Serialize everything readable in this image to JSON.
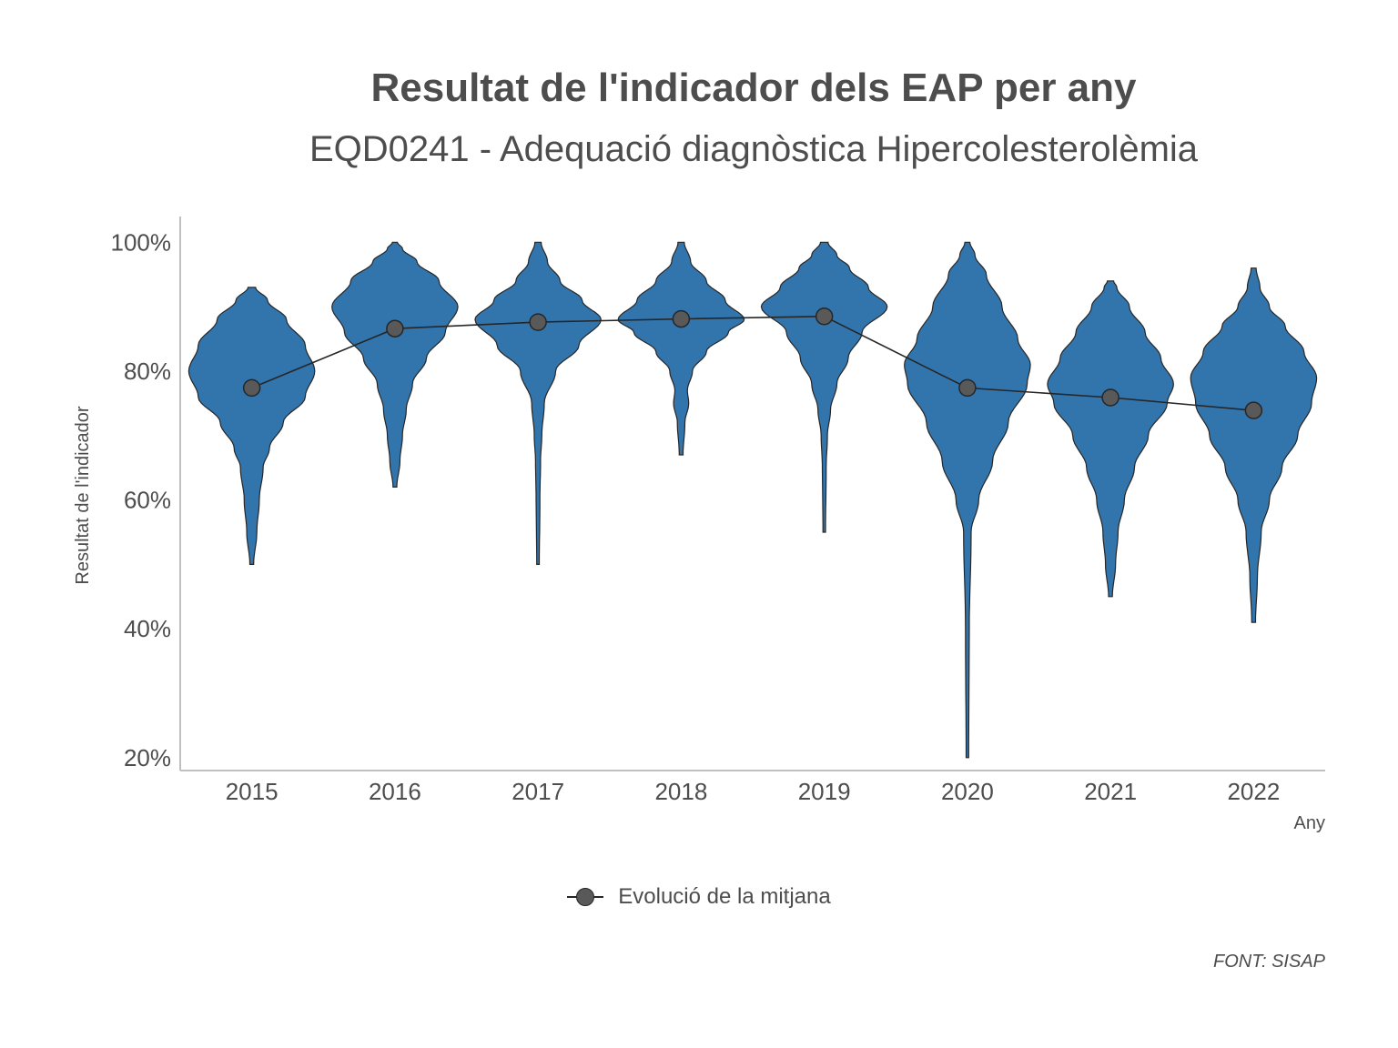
{
  "title": "Resultat de l'indicador dels EAP per any",
  "subtitle": "EQD0241 - Adequació diagnòstica Hipercolesterolèmia",
  "caption": "FONT: SISAP",
  "legend": {
    "label": "Evolució de la mitjana"
  },
  "colors": {
    "violin_fill": "#3275ad",
    "outline": "#262626",
    "mean_point": "#595959",
    "axis_line": "#bfbfbf",
    "text": "#4d4d4d"
  },
  "chart_data": {
    "type": "violin",
    "xlabel": "Any",
    "ylabel": "Resultat de l'indicador",
    "ylim": [
      0.18,
      1.04
    ],
    "yticks": [
      0.2,
      0.4,
      0.6,
      0.8,
      1.0
    ],
    "ytick_labels": [
      "20%",
      "40%",
      "60%",
      "80%",
      "100%"
    ],
    "grid": false,
    "legend_position": "bottom",
    "categories": [
      "2015",
      "2016",
      "2017",
      "2018",
      "2019",
      "2020",
      "2021",
      "2022"
    ],
    "violins": [
      {
        "year": "2015",
        "min": 0.5,
        "max": 0.93,
        "profile": [
          [
            0.5,
            0.03
          ],
          [
            0.55,
            0.08
          ],
          [
            0.6,
            0.12
          ],
          [
            0.65,
            0.18
          ],
          [
            0.68,
            0.28
          ],
          [
            0.72,
            0.5
          ],
          [
            0.76,
            0.85
          ],
          [
            0.8,
            1.0
          ],
          [
            0.84,
            0.85
          ],
          [
            0.88,
            0.55
          ],
          [
            0.91,
            0.25
          ],
          [
            0.93,
            0.06
          ]
        ]
      },
      {
        "year": "2016",
        "min": 0.62,
        "max": 1.0,
        "profile": [
          [
            0.62,
            0.03
          ],
          [
            0.66,
            0.08
          ],
          [
            0.7,
            0.12
          ],
          [
            0.74,
            0.18
          ],
          [
            0.78,
            0.28
          ],
          [
            0.82,
            0.5
          ],
          [
            0.86,
            0.8
          ],
          [
            0.9,
            1.0
          ],
          [
            0.94,
            0.7
          ],
          [
            0.97,
            0.35
          ],
          [
            0.99,
            0.12
          ],
          [
            1.0,
            0.04
          ]
        ]
      },
      {
        "year": "2017",
        "min": 0.5,
        "max": 1.0,
        "profile": [
          [
            0.5,
            0.02
          ],
          [
            0.6,
            0.03
          ],
          [
            0.66,
            0.04
          ],
          [
            0.7,
            0.06
          ],
          [
            0.75,
            0.1
          ],
          [
            0.8,
            0.28
          ],
          [
            0.84,
            0.65
          ],
          [
            0.88,
            1.0
          ],
          [
            0.91,
            0.7
          ],
          [
            0.94,
            0.35
          ],
          [
            0.97,
            0.15
          ],
          [
            1.0,
            0.05
          ]
        ]
      },
      {
        "year": "2018",
        "min": 0.67,
        "max": 1.0,
        "profile": [
          [
            0.67,
            0.03
          ],
          [
            0.72,
            0.06
          ],
          [
            0.75,
            0.12
          ],
          [
            0.77,
            0.1
          ],
          [
            0.8,
            0.18
          ],
          [
            0.83,
            0.4
          ],
          [
            0.86,
            0.75
          ],
          [
            0.88,
            1.0
          ],
          [
            0.91,
            0.7
          ],
          [
            0.94,
            0.4
          ],
          [
            0.97,
            0.15
          ],
          [
            1.0,
            0.05
          ]
        ]
      },
      {
        "year": "2019",
        "min": 0.55,
        "max": 1.0,
        "profile": [
          [
            0.55,
            0.02
          ],
          [
            0.65,
            0.03
          ],
          [
            0.7,
            0.05
          ],
          [
            0.74,
            0.1
          ],
          [
            0.78,
            0.2
          ],
          [
            0.82,
            0.38
          ],
          [
            0.86,
            0.6
          ],
          [
            0.9,
            1.0
          ],
          [
            0.93,
            0.7
          ],
          [
            0.96,
            0.4
          ],
          [
            0.98,
            0.2
          ],
          [
            1.0,
            0.06
          ]
        ]
      },
      {
        "year": "2020",
        "min": 0.2,
        "max": 1.0,
        "profile": [
          [
            0.2,
            0.02
          ],
          [
            0.4,
            0.03
          ],
          [
            0.55,
            0.06
          ],
          [
            0.6,
            0.18
          ],
          [
            0.66,
            0.4
          ],
          [
            0.72,
            0.65
          ],
          [
            0.78,
            0.95
          ],
          [
            0.81,
            1.0
          ],
          [
            0.85,
            0.8
          ],
          [
            0.9,
            0.55
          ],
          [
            0.95,
            0.3
          ],
          [
            0.98,
            0.12
          ],
          [
            1.0,
            0.04
          ]
        ]
      },
      {
        "year": "2021",
        "min": 0.45,
        "max": 0.94,
        "profile": [
          [
            0.45,
            0.03
          ],
          [
            0.5,
            0.08
          ],
          [
            0.55,
            0.12
          ],
          [
            0.6,
            0.22
          ],
          [
            0.65,
            0.38
          ],
          [
            0.7,
            0.6
          ],
          [
            0.75,
            0.9
          ],
          [
            0.78,
            1.0
          ],
          [
            0.82,
            0.8
          ],
          [
            0.86,
            0.55
          ],
          [
            0.9,
            0.3
          ],
          [
            0.93,
            0.1
          ],
          [
            0.94,
            0.05
          ]
        ]
      },
      {
        "year": "2022",
        "min": 0.41,
        "max": 0.96,
        "profile": [
          [
            0.41,
            0.03
          ],
          [
            0.48,
            0.06
          ],
          [
            0.55,
            0.12
          ],
          [
            0.6,
            0.25
          ],
          [
            0.65,
            0.45
          ],
          [
            0.7,
            0.7
          ],
          [
            0.75,
            0.92
          ],
          [
            0.79,
            1.0
          ],
          [
            0.83,
            0.8
          ],
          [
            0.87,
            0.5
          ],
          [
            0.9,
            0.25
          ],
          [
            0.93,
            0.1
          ],
          [
            0.96,
            0.04
          ]
        ]
      }
    ],
    "series": [
      {
        "name": "Evolució de la mitjana",
        "values": [
          0.774,
          0.866,
          0.876,
          0.881,
          0.885,
          0.774,
          0.759,
          0.739
        ]
      }
    ]
  }
}
